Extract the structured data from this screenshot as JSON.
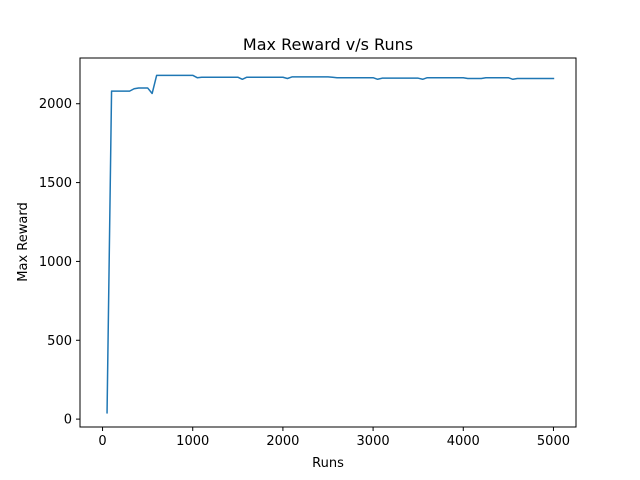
{
  "chart_data": {
    "type": "line",
    "title": "Max Reward v/s Runs",
    "xlabel": "Runs",
    "ylabel": "Max Reward",
    "xlim": [
      -250,
      5250
    ],
    "ylim": [
      -50,
      2290
    ],
    "xticks": [
      0,
      1000,
      2000,
      3000,
      4000,
      5000
    ],
    "yticks": [
      0,
      500,
      1000,
      1500,
      2000
    ],
    "xtick_labels": [
      "0",
      "1000",
      "2000",
      "3000",
      "4000",
      "5000"
    ],
    "ytick_labels": [
      "0",
      "500",
      "1000",
      "1500",
      "2000"
    ],
    "grid": false,
    "line_color": "#1f77b4",
    "series": [
      {
        "x": [
          50,
          100,
          150,
          200,
          250,
          300,
          350,
          400,
          450,
          500,
          550,
          600,
          650,
          700,
          750,
          800,
          850,
          900,
          950,
          1000,
          1050,
          1100,
          1150,
          1200,
          1250,
          1300,
          1350,
          1400,
          1450,
          1500,
          1550,
          1600,
          1650,
          1700,
          1750,
          1800,
          1850,
          1900,
          1950,
          2000,
          2050,
          2100,
          2150,
          2200,
          2250,
          2300,
          2350,
          2400,
          2450,
          2500,
          2550,
          2600,
          2650,
          2700,
          2750,
          2800,
          2850,
          2900,
          2950,
          3000,
          3050,
          3100,
          3150,
          3200,
          3250,
          3300,
          3350,
          3400,
          3450,
          3500,
          3550,
          3600,
          3650,
          3700,
          3750,
          3800,
          3850,
          3900,
          3950,
          4000,
          4050,
          4100,
          4150,
          4200,
          4250,
          4300,
          4350,
          4400,
          4450,
          4500,
          4550,
          4600,
          4650,
          4700,
          4750,
          4800,
          4850,
          4900,
          4950,
          5000
        ],
        "y": [
          40,
          2080,
          2080,
          2080,
          2080,
          2080,
          2095,
          2100,
          2100,
          2100,
          2065,
          2180,
          2180,
          2180,
          2180,
          2180,
          2180,
          2180,
          2180,
          2180,
          2165,
          2168,
          2168,
          2168,
          2168,
          2168,
          2168,
          2168,
          2168,
          2168,
          2155,
          2168,
          2168,
          2168,
          2168,
          2168,
          2168,
          2168,
          2168,
          2168,
          2160,
          2170,
          2170,
          2170,
          2170,
          2170,
          2170,
          2170,
          2170,
          2170,
          2168,
          2165,
          2165,
          2165,
          2165,
          2165,
          2165,
          2165,
          2165,
          2165,
          2155,
          2162,
          2162,
          2162,
          2162,
          2162,
          2162,
          2162,
          2162,
          2162,
          2155,
          2165,
          2165,
          2165,
          2165,
          2165,
          2165,
          2165,
          2165,
          2165,
          2160,
          2160,
          2160,
          2160,
          2165,
          2165,
          2165,
          2165,
          2165,
          2165,
          2155,
          2160,
          2160,
          2160,
          2160,
          2160,
          2160,
          2160,
          2160,
          2160
        ]
      }
    ]
  }
}
